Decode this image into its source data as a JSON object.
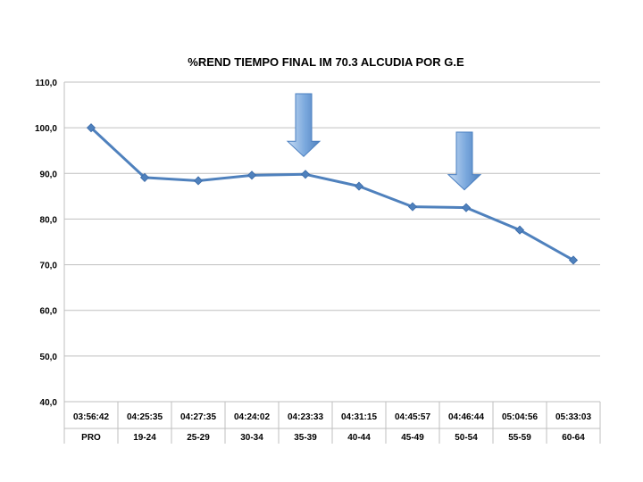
{
  "chart_data": {
    "type": "line",
    "title": "%REND TIEMPO FINAL IM 70.3 ALCUDIA POR G.E",
    "xlabel": "",
    "ylabel": "",
    "ylim": [
      40,
      110
    ],
    "yticks": [
      "40,0",
      "50,0",
      "60,0",
      "70,0",
      "80,0",
      "90,0",
      "100,0",
      "110,0"
    ],
    "grid": true,
    "categories": [
      {
        "time": "03:56:42",
        "group": "PRO"
      },
      {
        "time": "04:25:35",
        "group": "19-24"
      },
      {
        "time": "04:27:35",
        "group": "25-29"
      },
      {
        "time": "04:24:02",
        "group": "30-34"
      },
      {
        "time": "04:23:33",
        "group": "35-39"
      },
      {
        "time": "04:31:15",
        "group": "40-44"
      },
      {
        "time": "04:45:57",
        "group": "45-49"
      },
      {
        "time": "04:46:44",
        "group": "50-54"
      },
      {
        "time": "05:04:56",
        "group": "55-59"
      },
      {
        "time": "05:33:03",
        "group": "60-64"
      }
    ],
    "series": [
      {
        "values": [
          100.0,
          89.1,
          88.4,
          89.6,
          89.8,
          87.2,
          82.7,
          82.5,
          77.6,
          71.0
        ]
      }
    ],
    "highlight_categories": [
      "35-39",
      "50-54"
    ],
    "colors": {
      "line": "#4F81BD",
      "marker": "#4F81BD",
      "arrow": "#4F81BD",
      "grid": "#bfbfbf"
    }
  }
}
